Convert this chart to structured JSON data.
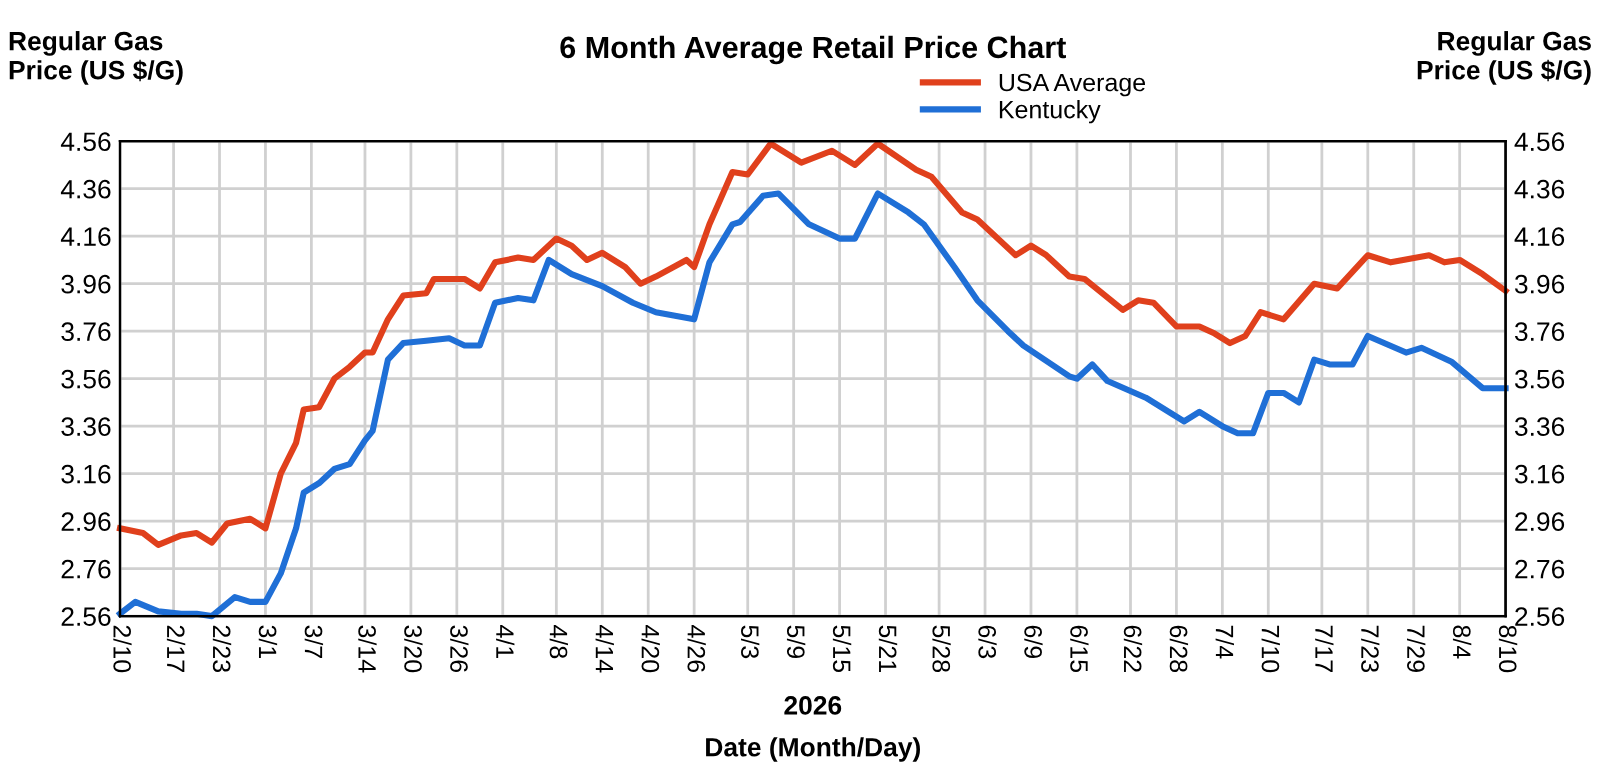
{
  "chart_data": {
    "type": "line",
    "title": "6 Month Average Retail Price Chart",
    "xlabel": "2026\nDate (Month/Day)",
    "ylabel": "Regular Gas\nPrice (US $/G)",
    "y2label": "Regular Gas\nPrice (US $/G)",
    "ylim": [
      2.56,
      4.56
    ],
    "yticks": [
      2.56,
      2.76,
      2.96,
      3.16,
      3.36,
      3.56,
      3.76,
      3.96,
      4.16,
      4.36,
      4.56
    ],
    "y2lim": [
      2.56,
      4.56
    ],
    "y2ticks": [
      2.56,
      2.76,
      2.96,
      3.16,
      3.36,
      3.56,
      3.76,
      3.96,
      4.16,
      4.36,
      4.56
    ],
    "xlim": [
      "2026-02-10",
      "2026-08-10"
    ],
    "xticks": [
      {
        "value": "2026-02-10",
        "label": "2/10"
      },
      {
        "value": "2026-02-17",
        "label": "2/17"
      },
      {
        "value": "2026-02-23",
        "label": "2/23"
      },
      {
        "value": "2026-03-01",
        "label": "3/1"
      },
      {
        "value": "2026-03-07",
        "label": "3/7"
      },
      {
        "value": "2026-03-14",
        "label": "3/14"
      },
      {
        "value": "2026-03-20",
        "label": "3/20"
      },
      {
        "value": "2026-03-26",
        "label": "3/26"
      },
      {
        "value": "2026-04-01",
        "label": "4/1"
      },
      {
        "value": "2026-04-08",
        "label": "4/8"
      },
      {
        "value": "2026-04-14",
        "label": "4/14"
      },
      {
        "value": "2026-04-20",
        "label": "4/20"
      },
      {
        "value": "2026-04-26",
        "label": "4/26"
      },
      {
        "value": "2026-05-03",
        "label": "5/3"
      },
      {
        "value": "2026-05-09",
        "label": "5/9"
      },
      {
        "value": "2026-05-15",
        "label": "5/15"
      },
      {
        "value": "2026-05-21",
        "label": "5/21"
      },
      {
        "value": "2026-05-28",
        "label": "5/28"
      },
      {
        "value": "2026-06-03",
        "label": "6/3"
      },
      {
        "value": "2026-06-09",
        "label": "6/9"
      },
      {
        "value": "2026-06-15",
        "label": "6/15"
      },
      {
        "value": "2026-06-22",
        "label": "6/22"
      },
      {
        "value": "2026-06-28",
        "label": "6/28"
      },
      {
        "value": "2026-07-04",
        "label": "7/4"
      },
      {
        "value": "2026-07-10",
        "label": "7/10"
      },
      {
        "value": "2026-07-17",
        "label": "7/17"
      },
      {
        "value": "2026-07-23",
        "label": "7/23"
      },
      {
        "value": "2026-07-29",
        "label": "7/29"
      },
      {
        "value": "2026-08-04",
        "label": "8/4"
      },
      {
        "value": "2026-08-10",
        "label": "8/10"
      }
    ],
    "grid": true,
    "legend": "top",
    "line_style": "solid",
    "marker": "none",
    "series": [
      {
        "name": "USA Average",
        "color": "#e0401c",
        "x": [
          "2026-02-10",
          "2026-02-13",
          "2026-02-15",
          "2026-02-18",
          "2026-02-20",
          "2026-02-22",
          "2026-02-24",
          "2026-02-27",
          "2026-03-01",
          "2026-03-03",
          "2026-03-05",
          "2026-03-06",
          "2026-03-08",
          "2026-03-10",
          "2026-03-12",
          "2026-03-14",
          "2026-03-15",
          "2026-03-17",
          "2026-03-19",
          "2026-03-22",
          "2026-03-23",
          "2026-03-27",
          "2026-03-29",
          "2026-03-31",
          "2026-04-03",
          "2026-04-05",
          "2026-04-08",
          "2026-04-10",
          "2026-04-12",
          "2026-04-14",
          "2026-04-17",
          "2026-04-19",
          "2026-04-21",
          "2026-04-25",
          "2026-04-26",
          "2026-04-28",
          "2026-05-01",
          "2026-05-03",
          "2026-05-06",
          "2026-05-10",
          "2026-05-14",
          "2026-05-17",
          "2026-05-20",
          "2026-05-25",
          "2026-05-27",
          "2026-05-31",
          "2026-06-02",
          "2026-06-07",
          "2026-06-09",
          "2026-06-11",
          "2026-06-14",
          "2026-06-16",
          "2026-06-21",
          "2026-06-23",
          "2026-06-25",
          "2026-06-28",
          "2026-07-01",
          "2026-07-03",
          "2026-07-05",
          "2026-07-07",
          "2026-07-09",
          "2026-07-12",
          "2026-07-16",
          "2026-07-19",
          "2026-07-23",
          "2026-07-26",
          "2026-07-31",
          "2026-08-02",
          "2026-08-04",
          "2026-08-07",
          "2026-08-10"
        ],
        "values": [
          2.93,
          2.91,
          2.86,
          2.9,
          2.91,
          2.87,
          2.95,
          2.97,
          2.93,
          3.16,
          3.29,
          3.43,
          3.44,
          3.56,
          3.61,
          3.67,
          3.67,
          3.81,
          3.91,
          3.92,
          3.98,
          3.98,
          3.94,
          4.05,
          4.07,
          4.06,
          4.15,
          4.12,
          4.06,
          4.09,
          4.03,
          3.96,
          3.99,
          4.06,
          4.03,
          4.21,
          4.43,
          4.42,
          4.55,
          4.47,
          4.52,
          4.46,
          4.55,
          4.44,
          4.41,
          4.26,
          4.23,
          4.08,
          4.12,
          4.08,
          3.99,
          3.98,
          3.85,
          3.89,
          3.88,
          3.78,
          3.78,
          3.75,
          3.71,
          3.74,
          3.84,
          3.81,
          3.96,
          3.94,
          4.08,
          4.05,
          4.08,
          4.05,
          4.06,
          4.0,
          3.93
        ]
      },
      {
        "name": "Kentucky",
        "color": "#1f6fd6",
        "x": [
          "2026-02-10",
          "2026-02-12",
          "2026-02-15",
          "2026-02-18",
          "2026-02-20",
          "2026-02-22",
          "2026-02-25",
          "2026-02-27",
          "2026-03-01",
          "2026-03-03",
          "2026-03-05",
          "2026-03-06",
          "2026-03-08",
          "2026-03-10",
          "2026-03-12",
          "2026-03-14",
          "2026-03-15",
          "2026-03-17",
          "2026-03-19",
          "2026-03-22",
          "2026-03-25",
          "2026-03-27",
          "2026-03-29",
          "2026-03-31",
          "2026-04-03",
          "2026-04-05",
          "2026-04-07",
          "2026-04-10",
          "2026-04-14",
          "2026-04-18",
          "2026-04-21",
          "2026-04-26",
          "2026-04-28",
          "2026-05-01",
          "2026-05-02",
          "2026-05-05",
          "2026-05-07",
          "2026-05-11",
          "2026-05-15",
          "2026-05-17",
          "2026-05-20",
          "2026-05-24",
          "2026-05-26",
          "2026-05-30",
          "2026-06-02",
          "2026-06-06",
          "2026-06-08",
          "2026-06-14",
          "2026-06-15",
          "2026-06-17",
          "2026-06-19",
          "2026-06-24",
          "2026-06-27",
          "2026-06-29",
          "2026-07-01",
          "2026-07-04",
          "2026-07-06",
          "2026-07-08",
          "2026-07-10",
          "2026-07-12",
          "2026-07-14",
          "2026-07-16",
          "2026-07-18",
          "2026-07-21",
          "2026-07-23",
          "2026-07-28",
          "2026-07-30",
          "2026-08-03",
          "2026-08-07",
          "2026-08-10"
        ],
        "values": [
          2.57,
          2.62,
          2.58,
          2.57,
          2.57,
          2.56,
          2.64,
          2.62,
          2.62,
          2.74,
          2.93,
          3.08,
          3.12,
          3.18,
          3.2,
          3.3,
          3.34,
          3.64,
          3.71,
          3.72,
          3.73,
          3.7,
          3.7,
          3.88,
          3.9,
          3.89,
          4.06,
          4.0,
          3.95,
          3.88,
          3.84,
          3.81,
          4.05,
          4.21,
          4.22,
          4.33,
          4.34,
          4.21,
          4.15,
          4.15,
          4.34,
          4.26,
          4.21,
          4.03,
          3.89,
          3.76,
          3.7,
          3.57,
          3.56,
          3.62,
          3.55,
          3.48,
          3.42,
          3.38,
          3.42,
          3.36,
          3.33,
          3.33,
          3.5,
          3.5,
          3.46,
          3.64,
          3.62,
          3.62,
          3.74,
          3.67,
          3.69,
          3.63,
          3.52,
          3.52
        ]
      }
    ]
  }
}
